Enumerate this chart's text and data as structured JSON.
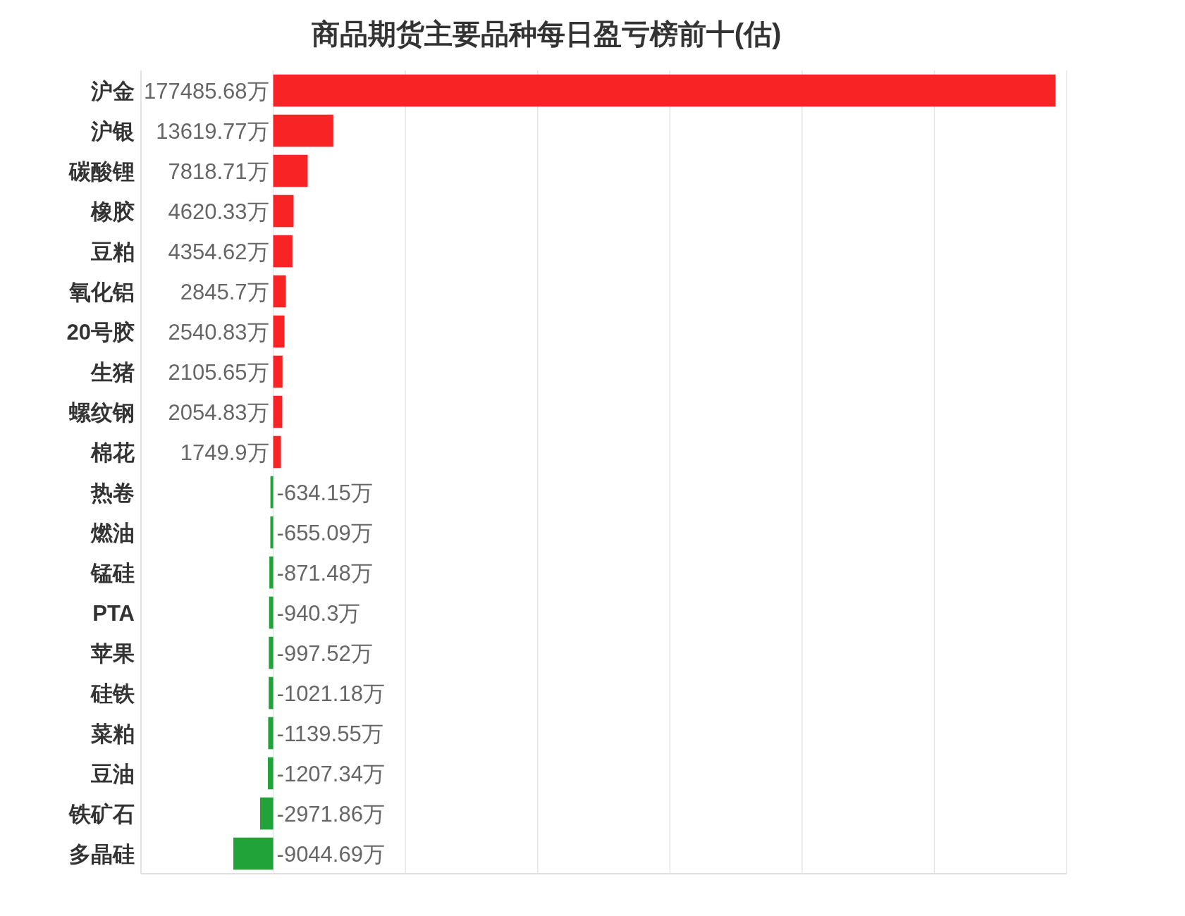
{
  "chart_data": {
    "type": "bar",
    "orientation": "horizontal",
    "title": "商品期货主要品种每日盈亏榜前十(估)",
    "categories": [
      "沪金",
      "沪银",
      "碳酸锂",
      "橡胶",
      "豆粕",
      "氧化铝",
      "20号胶",
      "生猪",
      "螺纹钢",
      "棉花",
      "热卷",
      "燃油",
      "锰硅",
      "PTA",
      "苹果",
      "硅铁",
      "菜粕",
      "豆油",
      "铁矿石",
      "多晶硅"
    ],
    "values": [
      177485.68,
      13619.77,
      7818.71,
      4620.33,
      4354.62,
      2845.7,
      2540.83,
      2105.65,
      2054.83,
      1749.9,
      -634.15,
      -655.09,
      -871.48,
      -940.3,
      -997.52,
      -1021.18,
      -1139.55,
      -1207.34,
      -2971.86,
      -9044.69
    ],
    "value_labels": [
      "177485.68万",
      "13619.77万",
      "7818.71万",
      "4620.33万",
      "4354.62万",
      "2845.7万",
      "2540.83万",
      "2105.65万",
      "2054.83万",
      "1749.9万",
      "-634.15万",
      "-655.09万",
      "-871.48万",
      "-940.3万",
      "-997.52万",
      "-1021.18万",
      "-1139.55万",
      "-1207.34万",
      "-2971.86万",
      "-9044.69万"
    ],
    "colors": [
      "#f82325",
      "#f82325",
      "#f82325",
      "#f82325",
      "#f82325",
      "#f82325",
      "#f82325",
      "#f82325",
      "#f82325",
      "#f82325",
      "#21a33a",
      "#21a33a",
      "#21a33a",
      "#21a33a",
      "#21a33a",
      "#21a33a",
      "#21a33a",
      "#21a33a",
      "#21a33a",
      "#21a33a"
    ],
    "xlim": [
      -30000,
      180000
    ],
    "xticks": [
      -30000,
      0,
      30000,
      60000,
      90000,
      120000,
      150000,
      180000
    ],
    "grid": "x",
    "tick_labels": "y"
  }
}
